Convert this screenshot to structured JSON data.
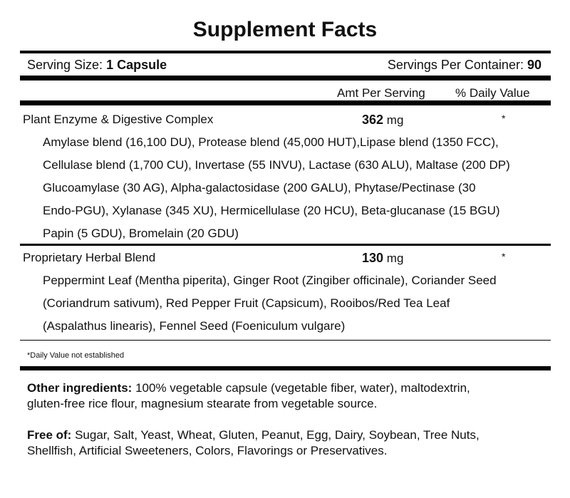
{
  "title": "Supplement Facts",
  "serving_size": {
    "label": "Serving Size:",
    "value": "1 Capsule"
  },
  "servings_per_container": {
    "label": "Servings Per Container:",
    "value": "90"
  },
  "columns": {
    "amount": "Amt Per Serving",
    "dv": "% Daily Value"
  },
  "rows": [
    {
      "name": "Plant Enzyme & Digestive Complex",
      "amount": "362",
      "unit": "mg",
      "dv": "*",
      "lines": [
        "Amylase blend (16,100 DU), Protease blend (45,000 HUT),Lipase blend (1350 FCC),",
        "Cellulase blend (1,700 CU), Invertase (55 INVU), Lactase (630 ALU), Maltase (200 DP)",
        "Glucoamylase (30 AG), Alpha-galactosidase (200 GALU), Phytase/Pectinase (30",
        "Endo-PGU), Xylanase (345 XU), Hermicellulase (20 HCU), Beta-glucanase (15 BGU)",
        "Papin (5 GDU), Bromelain (20 GDU)"
      ]
    },
    {
      "name": "Proprietary Herbal Blend",
      "amount": "130",
      "unit": "mg",
      "dv": "*",
      "lines": [
        "Peppermint Leaf (Mentha piperita), Ginger Root (Zingiber officinale), Coriander Seed",
        "(Coriandrum sativum), Red Pepper Fruit (Capsicum), Rooibos/Red Tea Leaf",
        "(Aspalathus linearis), Fennel Seed (Foeniculum vulgare)"
      ]
    }
  ],
  "footnote": "*Daily Value not established",
  "other_ingredients": {
    "label": "Other ingredients:",
    "lines": [
      " 100% vegetable capsule (vegetable fiber, water), maltodextrin,",
      "gluten-free rice flour, magnesium stearate from vegetable source."
    ]
  },
  "free_of": {
    "label": "Free of:",
    "lines": [
      " Sugar, Salt, Yeast, Wheat, Gluten, Peanut, Egg, Dairy, Soybean, Tree Nuts,",
      "Shellfish, Artificial Sweeteners, Colors, Flavorings or Preservatives."
    ]
  }
}
